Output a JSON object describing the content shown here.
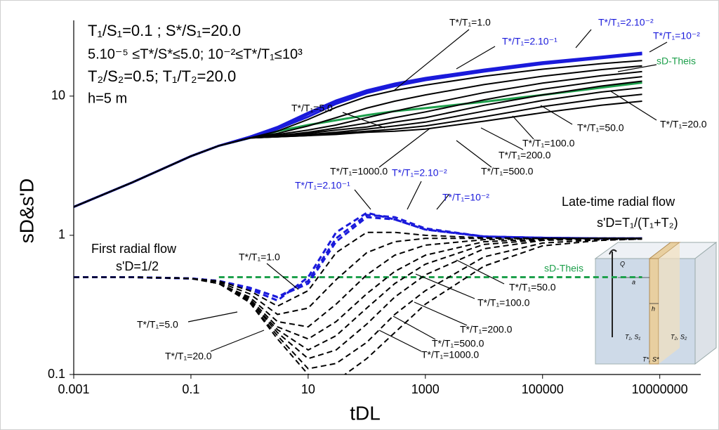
{
  "chart_data": {
    "type": "line",
    "x_label": "tDL",
    "y_label": "sD&s'D",
    "log_x": true,
    "log_y": true,
    "xlim": [
      0.001,
      50000000
    ],
    "ylim": [
      0.1,
      35
    ],
    "xticks": [
      0.001,
      0.1,
      10,
      1000,
      100000,
      10000000
    ],
    "yticks": [
      0.1,
      1,
      10
    ],
    "annotations": [
      "T₁/S₁=0.1 ; S*/S₁=20.0",
      "5.10⁻⁵ ≤T*/S*≤5.0; 10⁻²≤T*/T₁≤10³",
      "T₂/S₂=0.5; T₁/T₂=20.0",
      "h=5 m",
      "First radial flow",
      "s'D=1/2",
      "Late-time radial flow",
      "s'D=T₁/(T₁+T₂)"
    ],
    "x": [
      0.001,
      0.01,
      0.1,
      0.3,
      1,
      3,
      10,
      30,
      100,
      300,
      1000,
      10000,
      100000,
      1000000,
      5000000
    ],
    "series": [
      {
        "name": "sD-Theis",
        "color": "#1ea04c",
        "style": "solid",
        "values": [
          1.6,
          2.4,
          3.7,
          4.4,
          5.0,
          5.6,
          6.2,
          6.7,
          7.3,
          7.8,
          8.2,
          9.1,
          10.2,
          11.5,
          12.5
        ]
      },
      {
        "name": "T*/T₁=10⁻²",
        "color": "#1a1adb",
        "style": "solid",
        "values": [
          1.6,
          2.4,
          3.7,
          4.4,
          5.1,
          6.0,
          7.6,
          9.3,
          11.0,
          12.3,
          13.5,
          15.5,
          17.5,
          19.2,
          20.5
        ]
      },
      {
        "name": "T*/T₁=2.10⁻²",
        "color": "#1a1adb",
        "style": "solid",
        "values": [
          1.6,
          2.4,
          3.7,
          4.4,
          5.1,
          5.9,
          7.4,
          9.1,
          10.8,
          12.1,
          13.3,
          15.3,
          17.3,
          19.0,
          20.2
        ]
      },
      {
        "name": "T*/T₁=2.10⁻¹",
        "color": "#1a1adb",
        "style": "solid",
        "values": [
          1.6,
          2.4,
          3.7,
          4.4,
          5.0,
          5.8,
          7.1,
          8.8,
          10.5,
          11.8,
          13.0,
          15.0,
          17.0,
          18.7,
          20.0
        ]
      },
      {
        "name": "T*/T₁=1.0",
        "color": "#000000",
        "style": "solid",
        "values": [
          1.6,
          2.4,
          3.7,
          4.4,
          5.0,
          5.6,
          6.8,
          8.3,
          9.9,
          11.0,
          12.0,
          13.9,
          15.6,
          17.1,
          18.0
        ]
      },
      {
        "name": "T*/T₁=5.0",
        "color": "#000000",
        "style": "solid",
        "values": [
          1.6,
          2.4,
          3.7,
          4.4,
          5.0,
          5.4,
          6.1,
          7.0,
          8.2,
          9.2,
          10.2,
          12.1,
          13.9,
          15.5,
          16.5
        ]
      },
      {
        "name": "T*/T₁=20.0",
        "color": "#000000",
        "style": "solid",
        "values": [
          1.6,
          2.4,
          3.7,
          4.4,
          5.0,
          5.3,
          5.7,
          6.2,
          7.0,
          7.8,
          8.7,
          10.6,
          12.4,
          14.0,
          15.0
        ]
      },
      {
        "name": "T*/T₁=50.0",
        "color": "#000000",
        "style": "solid",
        "values": [
          1.6,
          2.4,
          3.7,
          4.4,
          5.0,
          5.2,
          5.5,
          5.9,
          6.4,
          7.0,
          7.7,
          9.4,
          11.2,
          12.8,
          13.8
        ]
      },
      {
        "name": "T*/T₁=100.0",
        "color": "#000000",
        "style": "solid",
        "values": [
          1.6,
          2.4,
          3.7,
          4.4,
          5.0,
          5.2,
          5.4,
          5.7,
          6.0,
          6.5,
          7.0,
          8.6,
          10.2,
          11.8,
          12.8
        ]
      },
      {
        "name": "T*/T₁=200.0",
        "color": "#000000",
        "style": "solid",
        "values": [
          1.6,
          2.4,
          3.7,
          4.4,
          5.0,
          5.1,
          5.3,
          5.5,
          5.8,
          6.1,
          6.5,
          7.8,
          9.3,
          10.7,
          11.5
        ]
      },
      {
        "name": "T*/T₁=500.0",
        "color": "#000000",
        "style": "solid",
        "values": [
          1.6,
          2.4,
          3.7,
          4.4,
          5.0,
          5.1,
          5.2,
          5.4,
          5.6,
          5.8,
          6.1,
          7.1,
          8.4,
          9.6,
          10.3
        ]
      },
      {
        "name": "T*/T₁=1000.0",
        "color": "#000000",
        "style": "solid",
        "values": [
          1.6,
          2.4,
          3.7,
          4.4,
          5.0,
          5.1,
          5.2,
          5.3,
          5.5,
          5.6,
          5.8,
          6.6,
          7.6,
          8.6,
          9.2
        ]
      },
      {
        "name": "sD-Theis",
        "color": "#1ea04c",
        "style": "dashed",
        "values": [
          null,
          null,
          null,
          0.5,
          0.5,
          0.5,
          0.5,
          0.5,
          0.5,
          0.5,
          0.5,
          0.5,
          0.5,
          0.5,
          0.5
        ]
      },
      {
        "name": "T*/T₁=10⁻²",
        "color": "#1a1adb",
        "style": "dashed",
        "values": [
          0.5,
          0.5,
          0.49,
          0.47,
          0.42,
          0.36,
          0.45,
          0.9,
          1.35,
          1.3,
          1.1,
          0.98,
          0.96,
          0.95,
          0.95
        ]
      },
      {
        "name": "T*/T₁=2.10⁻²",
        "color": "#1a1adb",
        "style": "dashed",
        "values": [
          0.5,
          0.5,
          0.49,
          0.47,
          0.42,
          0.36,
          0.47,
          0.95,
          1.4,
          1.35,
          1.12,
          0.98,
          0.96,
          0.95,
          0.95
        ]
      },
      {
        "name": "T*/T₁=2.10⁻¹",
        "color": "#1a1adb",
        "style": "dashed",
        "values": [
          0.5,
          0.5,
          0.49,
          0.47,
          0.41,
          0.34,
          0.5,
          1.05,
          1.45,
          1.3,
          1.1,
          0.98,
          0.96,
          0.95,
          0.95
        ]
      },
      {
        "name": "T*/T₁=1.0",
        "color": "#000000",
        "style": "dashed",
        "values": [
          0.5,
          0.5,
          0.49,
          0.47,
          0.4,
          0.31,
          0.4,
          0.75,
          1.05,
          1.05,
          1.0,
          0.96,
          0.95,
          0.95,
          0.95
        ]
      },
      {
        "name": "T*/T₁=5.0",
        "color": "#000000",
        "style": "dashed",
        "values": [
          0.5,
          0.5,
          0.49,
          0.46,
          0.38,
          0.27,
          0.3,
          0.48,
          0.75,
          0.9,
          0.95,
          0.95,
          0.95,
          0.95,
          0.95
        ]
      },
      {
        "name": "T*/T₁=20.0",
        "color": "#000000",
        "style": "dashed",
        "values": [
          0.5,
          0.5,
          0.49,
          0.45,
          0.36,
          0.24,
          0.22,
          0.32,
          0.52,
          0.72,
          0.85,
          0.93,
          0.95,
          0.95,
          0.95
        ]
      },
      {
        "name": "T*/T₁=50.0",
        "color": "#000000",
        "style": "dashed",
        "values": [
          0.5,
          0.5,
          0.49,
          0.45,
          0.35,
          0.22,
          0.18,
          0.24,
          0.38,
          0.55,
          0.72,
          0.9,
          0.94,
          0.95,
          0.95
        ]
      },
      {
        "name": "T*/T₁=100.0",
        "color": "#000000",
        "style": "dashed",
        "values": [
          0.5,
          0.5,
          0.49,
          0.45,
          0.34,
          0.21,
          0.15,
          0.19,
          0.3,
          0.45,
          0.62,
          0.86,
          0.93,
          0.95,
          0.95
        ]
      },
      {
        "name": "T*/T₁=200.0",
        "color": "#000000",
        "style": "dashed",
        "values": [
          0.5,
          0.5,
          0.49,
          0.45,
          0.34,
          0.2,
          0.13,
          0.15,
          0.23,
          0.36,
          0.52,
          0.8,
          0.92,
          0.94,
          0.95
        ]
      },
      {
        "name": "T*/T₁=500.0",
        "color": "#000000",
        "style": "dashed",
        "values": [
          0.5,
          0.5,
          0.49,
          0.45,
          0.33,
          0.19,
          0.11,
          0.12,
          0.17,
          0.27,
          0.4,
          0.7,
          0.88,
          0.93,
          0.94
        ]
      },
      {
        "name": "T*/T₁=1000.0",
        "color": "#000000",
        "style": "dashed",
        "values": [
          0.5,
          0.5,
          0.49,
          0.45,
          0.33,
          0.18,
          0.1,
          0.09,
          0.13,
          0.2,
          0.32,
          0.6,
          0.84,
          0.92,
          0.94
        ]
      }
    ],
    "inset": {
      "labels": [
        "Q",
        "a",
        "h",
        "T₁, S₁",
        "T₂, S₂",
        "T*, S*"
      ]
    }
  }
}
